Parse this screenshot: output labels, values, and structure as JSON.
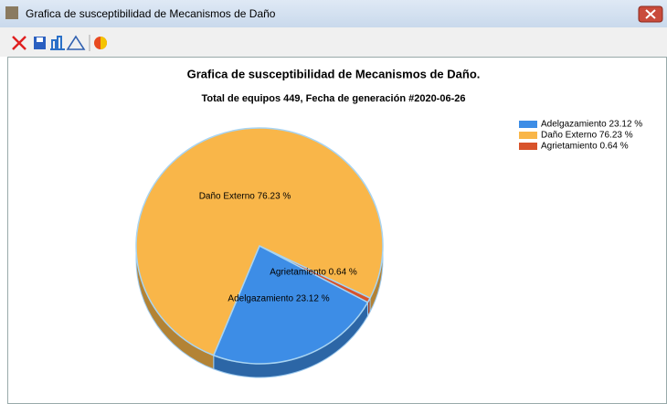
{
  "window": {
    "title": "Grafica de susceptibilidad de Mecanismos de Daño"
  },
  "chart_data": {
    "type": "pie",
    "title": "Grafica de susceptibilidad de Mecanismos de Daño.",
    "subtitle": "Total de equipos 449, Fecha de generación #2020-06-26",
    "categories": [
      "Adelgazamiento 23.12 %",
      "Daño Externo 76.23 %",
      "Agrietamiento 0.64 %"
    ],
    "values": [
      23.12,
      76.23,
      0.64
    ],
    "colors": [
      "#3d8de6",
      "#f9b649",
      "#d8532b"
    ],
    "legend": "top-right"
  }
}
